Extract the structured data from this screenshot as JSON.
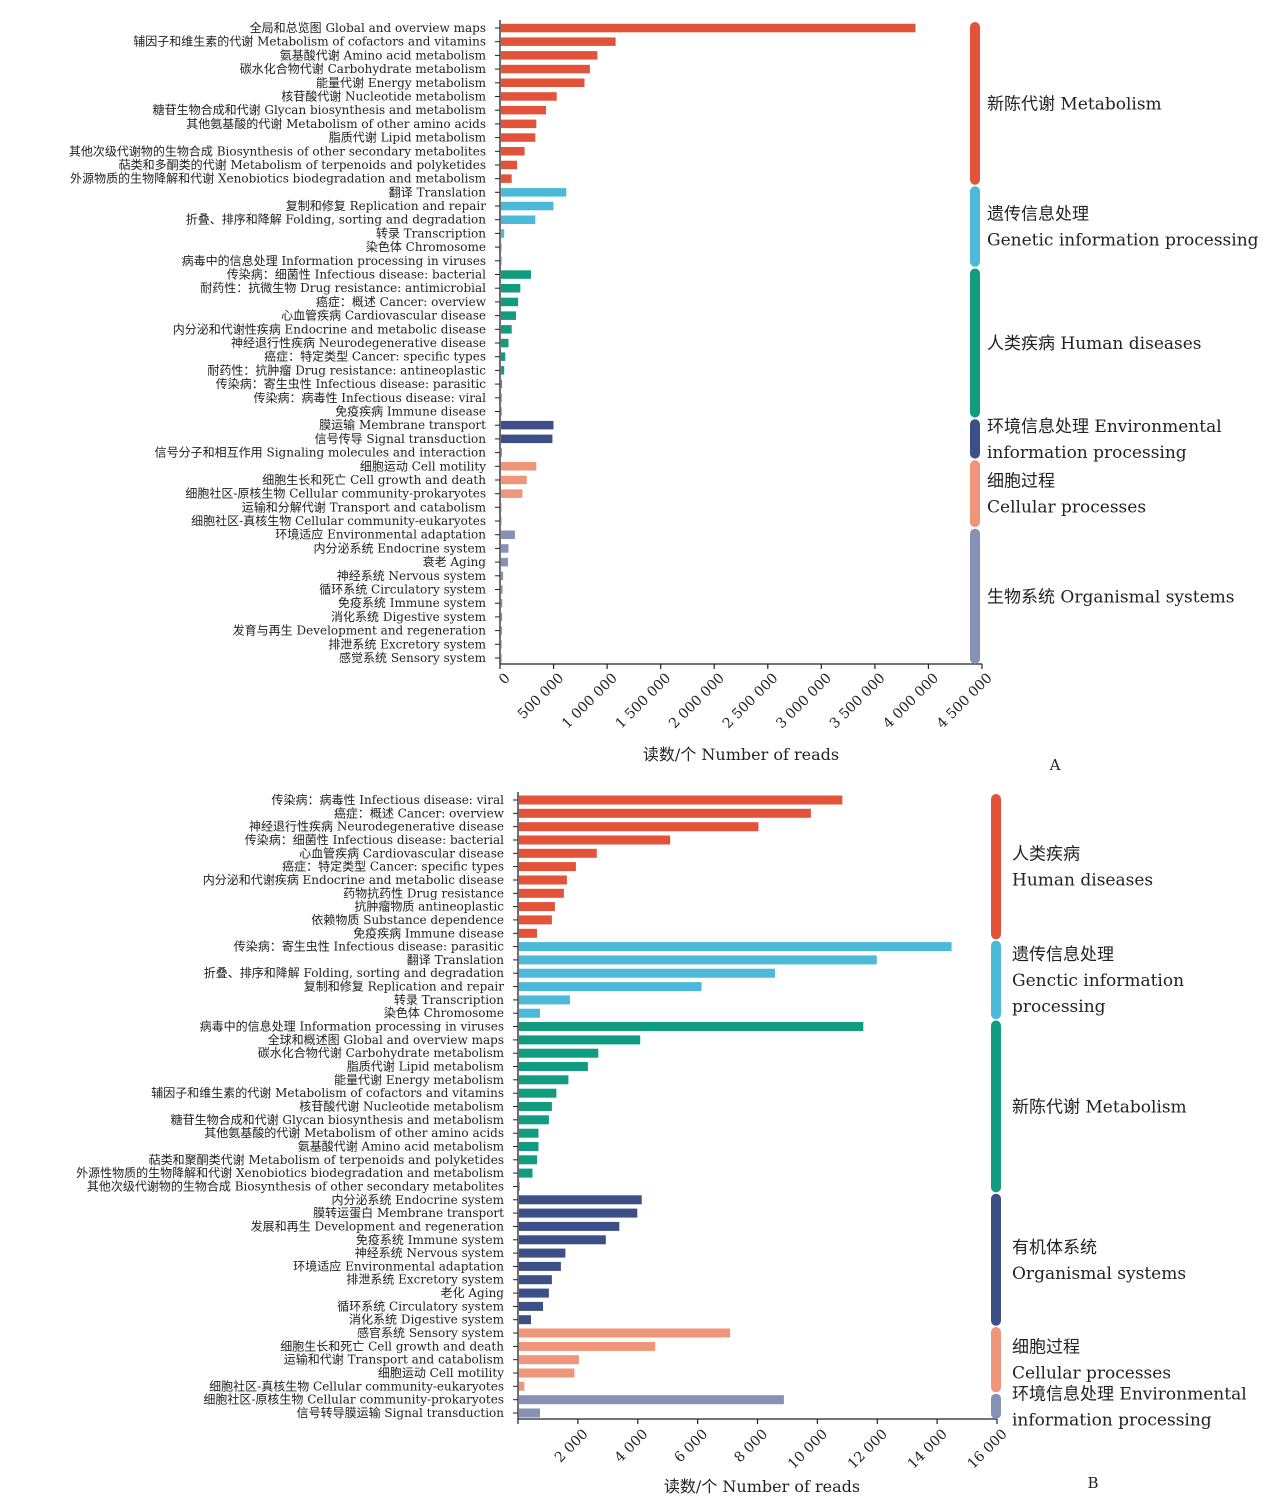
{
  "chart_data": [
    {
      "type": "bar",
      "orientation": "horizontal",
      "panel_label": "A",
      "xlabel": "读数/个 Number of reads",
      "xlim": [
        0,
        4500000
      ],
      "xticks": [
        0,
        500000,
        1000000,
        1500000,
        2000000,
        2500000,
        3000000,
        3500000,
        4000000,
        4500000
      ],
      "xtick_labels": [
        "0",
        "500 000",
        "1 000 000",
        "1 500 000",
        "2 000 000",
        "2 500 000",
        "3 000 000",
        "3 500 000",
        "4 000 000",
        "4 500 000"
      ],
      "grid": false,
      "categories": [
        {
          "label": "全局和总览图 Global and overview maps",
          "value": 3870000,
          "group": 0
        },
        {
          "label": "辅因子和维生素的代谢 Metabolism of cofactors and vitamins",
          "value": 1070000,
          "group": 0
        },
        {
          "label": "氨基酸代谢 Amino acid metabolism",
          "value": 900000,
          "group": 0
        },
        {
          "label": "碳水化合物代谢 Carbohydrate metabolism",
          "value": 830000,
          "group": 0
        },
        {
          "label": "能量代谢 Energy metabolism",
          "value": 780000,
          "group": 0
        },
        {
          "label": "核苷酸代谢 Nucleotide metabolism",
          "value": 520000,
          "group": 0
        },
        {
          "label": "糖苷生物合成和代谢 Glycan biosynthesis and metabolism",
          "value": 420000,
          "group": 0
        },
        {
          "label": "其他氨基酸的代谢 Metabolism of other amino acids",
          "value": 330000,
          "group": 0
        },
        {
          "label": "脂质代谢 Lipid metabolism",
          "value": 320000,
          "group": 0
        },
        {
          "label": "其他次级代谢物的生物合成 Biosynthesis of other secondary metabolites",
          "value": 220000,
          "group": 0
        },
        {
          "label": "萜类和多酮类的代谢 Metabolism of terpenoids and polyketides",
          "value": 150000,
          "group": 0
        },
        {
          "label": "外源物质的生物降解和代谢 Xenobiotics biodegradation and metabolism",
          "value": 100000,
          "group": 0
        },
        {
          "label": "翻译 Translation",
          "value": 610000,
          "group": 1
        },
        {
          "label": "复制和修复 Replication and repair",
          "value": 490000,
          "group": 1
        },
        {
          "label": "折叠、排序和降解 Folding, sorting and degradation",
          "value": 320000,
          "group": 1
        },
        {
          "label": "转录 Transcription",
          "value": 30000,
          "group": 1
        },
        {
          "label": "染色体 Chromosome",
          "value": 3000,
          "group": 1
        },
        {
          "label": "病毒中的信息处理 Information processing in viruses",
          "value": 1000,
          "group": 1
        },
        {
          "label": "传染病：细菌性 Infectious disease: bacterial",
          "value": 280000,
          "group": 2
        },
        {
          "label": "耐药性：抗微生物 Drug resistance: antimicrobial",
          "value": 180000,
          "group": 2
        },
        {
          "label": "癌症：概述 Cancer: overview",
          "value": 160000,
          "group": 2
        },
        {
          "label": "心血管疾病 Cardiovascular disease",
          "value": 140000,
          "group": 2
        },
        {
          "label": "内分泌和代谢性疾病 Endocrine and metabolic disease",
          "value": 100000,
          "group": 2
        },
        {
          "label": "神经退行性疾病 Neurodegenerative disease",
          "value": 70000,
          "group": 2
        },
        {
          "label": "癌症：特定类型 Cancer: specific types",
          "value": 40000,
          "group": 2
        },
        {
          "label": "耐药性：抗肿瘤 Drug resistance: antineoplastic",
          "value": 30000,
          "group": 2
        },
        {
          "label": "传染病：寄生虫性 Infectious disease: parasitic",
          "value": 8000,
          "group": 2
        },
        {
          "label": "传染病：病毒性 Infectious disease: viral",
          "value": 5000,
          "group": 2
        },
        {
          "label": "免疫疾病 Immune disease",
          "value": 2000,
          "group": 2
        },
        {
          "label": "膜运输 Membrane transport",
          "value": 490000,
          "group": 3
        },
        {
          "label": "信号传导 Signal transduction",
          "value": 480000,
          "group": 3
        },
        {
          "label": "信号分子和相互作用 Signaling molecules and interaction",
          "value": 2000,
          "group": 3
        },
        {
          "label": "细胞运动 Cell motility",
          "value": 330000,
          "group": 4
        },
        {
          "label": "细胞生长和死亡 Cell growth and death",
          "value": 240000,
          "group": 4
        },
        {
          "label": "细胞社区-原核生物 Cellular community-prokaryotes",
          "value": 200000,
          "group": 4
        },
        {
          "label": "运输和分解代谢 Transport and catabolism",
          "value": 5000,
          "group": 4
        },
        {
          "label": "细胞社区-真核生物 Cellular community-eukaryotes",
          "value": 2000,
          "group": 4
        },
        {
          "label": "环境适应 Environmental adaptation",
          "value": 130000,
          "group": 5
        },
        {
          "label": "内分泌系统 Endocrine system",
          "value": 70000,
          "group": 5
        },
        {
          "label": "衰老 Aging",
          "value": 65000,
          "group": 5
        },
        {
          "label": "神经系统 Nervous system",
          "value": 20000,
          "group": 5
        },
        {
          "label": "循环系统 Circulatory system",
          "value": 15000,
          "group": 5
        },
        {
          "label": "免疫系统 Immune system",
          "value": 12000,
          "group": 5
        },
        {
          "label": "消化系统 Digestive system",
          "value": 10000,
          "group": 5
        },
        {
          "label": "发育与再生 Development and regeneration",
          "value": 8000,
          "group": 5
        },
        {
          "label": "排泄系统 Excretory system",
          "value": 6000,
          "group": 5
        },
        {
          "label": "感觉系统 Sensory system",
          "value": 4000,
          "group": 5
        }
      ],
      "groups": [
        {
          "lines": [
            "新陈代谢 Metabolism"
          ],
          "color": "#e2533a"
        },
        {
          "lines": [
            "遗传信息处理",
            "Genetic information processing"
          ],
          "color": "#4cb9d8"
        },
        {
          "lines": [
            "人类疾病 Human diseases"
          ],
          "color": "#119b7f"
        },
        {
          "lines": [
            "环境信息处理 Environmental",
            "information processing"
          ],
          "color": "#3c4f86"
        },
        {
          "lines": [
            "细胞过程",
            "Cellular processes"
          ],
          "color": "#ef9579"
        },
        {
          "lines": [
            "生物系统 Organismal systems"
          ],
          "color": "#8592b5"
        }
      ]
    },
    {
      "type": "bar",
      "orientation": "horizontal",
      "panel_label": "B",
      "xlabel": "读数/个 Number of reads",
      "xlim": [
        0,
        16000
      ],
      "xticks": [
        0,
        2000,
        4000,
        6000,
        8000,
        10000,
        12000,
        14000,
        16000
      ],
      "xtick_labels": [
        "",
        "2 000",
        "4 000",
        "6 000",
        "8 000",
        "10 000",
        "12 000",
        "14 000",
        "16 000"
      ],
      "grid": false,
      "categories": [
        {
          "label": "传染病：病毒性 Infectious disease: viral",
          "value": 10800,
          "group": 0
        },
        {
          "label": "癌症：概述 Cancer: overview",
          "value": 9750,
          "group": 0
        },
        {
          "label": "神经退行性疾病 Neurodegenerative disease",
          "value": 8000,
          "group": 0
        },
        {
          "label": "传染病：细菌性 Infectious disease: bacterial",
          "value": 5050,
          "group": 0
        },
        {
          "label": "心血管疾病 Cardiovascular disease",
          "value": 2600,
          "group": 0
        },
        {
          "label": "癌症：特定类型 Cancer: specific types",
          "value": 1900,
          "group": 0
        },
        {
          "label": "内分泌和代谢疾病 Endocrine and metabolic disease",
          "value": 1600,
          "group": 0
        },
        {
          "label": "药物抗药性 Drug resistance",
          "value": 1500,
          "group": 0
        },
        {
          "label": "抗肿瘤物质 antineoplastic",
          "value": 1200,
          "group": 0
        },
        {
          "label": "依赖物质 Substance dependence",
          "value": 1100,
          "group": 0
        },
        {
          "label": "免疫疾病 Immune disease",
          "value": 600,
          "group": 0
        },
        {
          "label": "传染病：寄生虫性 Infectious disease: parasitic",
          "value": 14450,
          "group": 1
        },
        {
          "label": "翻译 Translation",
          "value": 11950,
          "group": 1
        },
        {
          "label": "折叠、排序和降解 Folding, sorting and degradation",
          "value": 8550,
          "group": 1
        },
        {
          "label": "复制和修复 Replication and repair",
          "value": 6100,
          "group": 1
        },
        {
          "label": "转录 Transcription",
          "value": 1700,
          "group": 1
        },
        {
          "label": "染色体 Chromosome",
          "value": 700,
          "group": 1
        },
        {
          "label": "病毒中的信息处理 Information processing in viruses",
          "value": 11500,
          "group": 2
        },
        {
          "label": "全球和概述图 Global and overview maps",
          "value": 4050,
          "group": 2
        },
        {
          "label": "碳水化合物代谢 Carbohydrate metabolism",
          "value": 2650,
          "group": 2
        },
        {
          "label": "脂质代谢 Lipid metabolism",
          "value": 2300,
          "group": 2
        },
        {
          "label": "能量代谢 Energy metabolism",
          "value": 1650,
          "group": 2
        },
        {
          "label": "辅因子和维生素的代谢 Metabolism of cofactors and vitamins",
          "value": 1250,
          "group": 2
        },
        {
          "label": "核苷酸代谢 Nucleotide metabolism",
          "value": 1100,
          "group": 2
        },
        {
          "label": "糖苷生物合成和代谢 Glycan biosynthesis and metabolism",
          "value": 1000,
          "group": 2
        },
        {
          "label": "其他氨基酸的代谢 Metabolism of other amino acids",
          "value": 650,
          "group": 2
        },
        {
          "label": "氨基酸代谢 Amino acid metabolism",
          "value": 650,
          "group": 2
        },
        {
          "label": "萜类和聚酮类代谢 Metabolism of terpenoids and polyketides",
          "value": 600,
          "group": 2
        },
        {
          "label": "外源性物质的生物降解和代谢 Xenobiotics biodegradation and metabolism",
          "value": 450,
          "group": 2
        },
        {
          "label": "其他次级代谢物的生物合成 Biosynthesis of other secondary metabolites",
          "value": 20,
          "group": 2
        },
        {
          "label": "内分泌系统 Endocrine system",
          "value": 4100,
          "group": 3
        },
        {
          "label": "膜转运蛋白 Membrane transport",
          "value": 3950,
          "group": 3
        },
        {
          "label": "发展和再生 Development and regeneration",
          "value": 3350,
          "group": 3
        },
        {
          "label": "免疫系统 Immune system",
          "value": 2900,
          "group": 3
        },
        {
          "label": "神经系统 Nervous system",
          "value": 1550,
          "group": 3
        },
        {
          "label": "环境适应 Environmental adaptation",
          "value": 1400,
          "group": 3
        },
        {
          "label": "排泄系统 Excretory system",
          "value": 1100,
          "group": 3
        },
        {
          "label": "老化 Aging",
          "value": 1000,
          "group": 3
        },
        {
          "label": "循环系统 Circulatory system",
          "value": 800,
          "group": 3
        },
        {
          "label": "消化系统 Digestive system",
          "value": 400,
          "group": 3
        },
        {
          "label": "感官系统 Sensory system",
          "value": 7050,
          "group": 4
        },
        {
          "label": "细胞生长和死亡 Cell growth and death",
          "value": 4550,
          "group": 4
        },
        {
          "label": "运输和代谢 Transport and catabolism",
          "value": 2000,
          "group": 4
        },
        {
          "label": "细胞运动 Cell motility",
          "value": 1850,
          "group": 4
        },
        {
          "label": "细胞社区-真核生物 Cellular community-eukaryotes",
          "value": 180,
          "group": 4
        },
        {
          "label": "细胞社区-原核生物 Cellular community-prokaryotes",
          "value": 8850,
          "group": 5
        },
        {
          "label": "信号转导膜运输 Signal transduction",
          "value": 700,
          "group": 5
        }
      ],
      "groups": [
        {
          "lines": [
            "人类疾病",
            "Human diseases"
          ],
          "color": "#e2533a"
        },
        {
          "lines": [
            "遗传信息处理",
            "Genctic information",
            "processing"
          ],
          "color": "#4cb9d8"
        },
        {
          "lines": [
            "新陈代谢 Metabolism"
          ],
          "color": "#119b7f"
        },
        {
          "lines": [
            "有机体系统",
            "Organismal systems"
          ],
          "color": "#3c4f86"
        },
        {
          "lines": [
            "细胞过程",
            "Cellular processes"
          ],
          "color": "#ef9579"
        },
        {
          "lines": [
            "环境信息处理 Environmental",
            "information processing"
          ],
          "color": "#8592b5"
        }
      ]
    }
  ]
}
